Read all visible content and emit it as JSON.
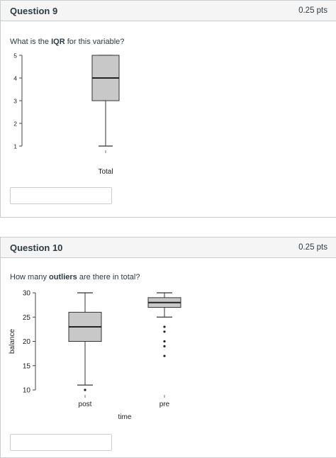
{
  "questions": [
    {
      "title": "Question 9",
      "points": "0.25 pts",
      "prompt_before": "What is the ",
      "prompt_bold": "IQR",
      "prompt_after": " for this variable?",
      "answer_value": ""
    },
    {
      "title": "Question 10",
      "points": "0.25 pts",
      "prompt_before": "How many ",
      "prompt_bold": "outliers",
      "prompt_after": " are there in total?",
      "answer_value": ""
    }
  ],
  "chart_data": [
    {
      "type": "boxplot",
      "xlabel": "",
      "ylabel": "",
      "ylim": [
        1,
        5
      ],
      "yticks": [
        "1",
        "2",
        "3",
        "4",
        "5"
      ],
      "categories": [
        "Total"
      ],
      "boxes": [
        {
          "name": "Total",
          "min": 1,
          "q1": 3,
          "median": 4,
          "q3": 5,
          "max": 5,
          "outliers": []
        }
      ],
      "fill": "#c8c8c8"
    },
    {
      "type": "boxplot",
      "xlabel": "time",
      "ylabel": "balance",
      "ylim": [
        10,
        30
      ],
      "yticks": [
        "10",
        "15",
        "20",
        "25",
        "30"
      ],
      "categories": [
        "post",
        "pre"
      ],
      "boxes": [
        {
          "name": "post",
          "min": 11,
          "q1": 20,
          "median": 23,
          "q3": 26,
          "max": 30,
          "outliers": [
            10
          ]
        },
        {
          "name": "pre",
          "min": 25,
          "q1": 27,
          "median": 28,
          "q3": 29,
          "max": 30,
          "outliers": [
            23,
            22,
            20,
            19,
            17
          ]
        }
      ],
      "fill": "#c8c8c8"
    }
  ]
}
